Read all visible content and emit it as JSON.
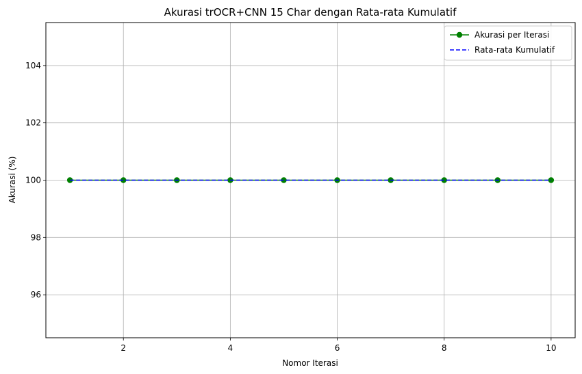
{
  "chart_data": {
    "type": "line",
    "title": "Akurasi trOCR+CNN 15 Char dengan Rata-rata Kumulatif",
    "xlabel": "Nomor Iterasi",
    "ylabel": "Akurasi (%)",
    "x": [
      1,
      2,
      3,
      4,
      5,
      6,
      7,
      8,
      9,
      10
    ],
    "xlim": [
      0.55,
      10.45
    ],
    "ylim": [
      94.5,
      105.5
    ],
    "xticks": [
      2,
      4,
      6,
      8,
      10
    ],
    "yticks": [
      96,
      98,
      100,
      102,
      104
    ],
    "grid": true,
    "legend_position": "top-right",
    "series": [
      {
        "name": "Akurasi per Iterasi",
        "values": [
          100,
          100,
          100,
          100,
          100,
          100,
          100,
          100,
          100,
          100
        ],
        "color": "#008000",
        "line_style": "solid",
        "marker": "circle"
      },
      {
        "name": "Rata-rata Kumulatif",
        "values": [
          100,
          100,
          100,
          100,
          100,
          100,
          100,
          100,
          100,
          100
        ],
        "color": "#0000ff",
        "line_style": "dashed",
        "marker": "none"
      }
    ]
  }
}
